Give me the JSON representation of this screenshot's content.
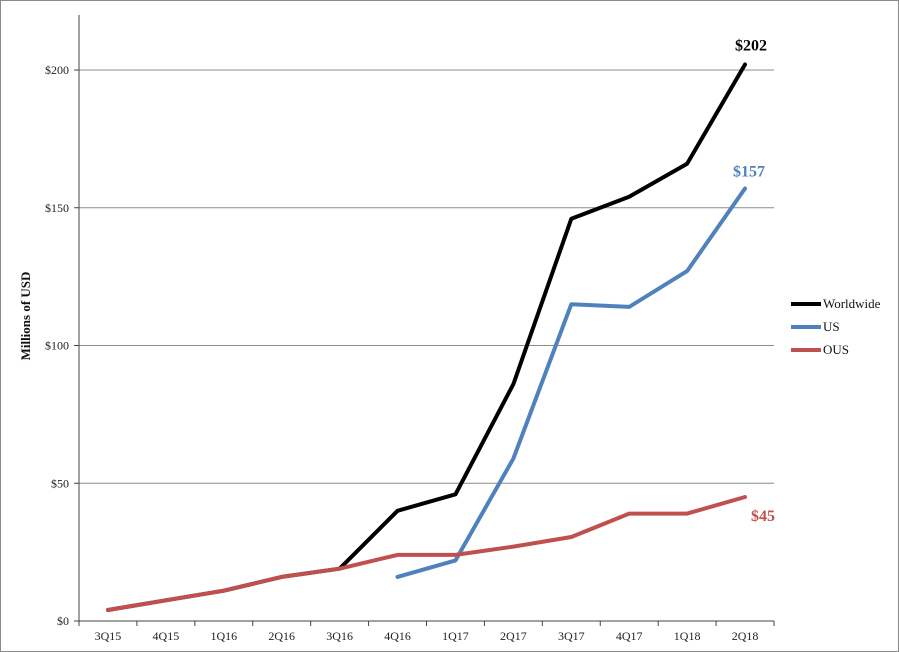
{
  "chart_data": {
    "type": "line",
    "title": "",
    "xlabel": "",
    "ylabel": "Millions of USD",
    "ylim": [
      0,
      200
    ],
    "yticks": [
      0,
      50,
      100,
      150,
      200
    ],
    "ytick_labels": [
      "$0",
      "$50",
      "$100",
      "$150",
      "$200"
    ],
    "grid": "horizontal",
    "legend_position": "right",
    "categories": [
      "3Q15",
      "4Q15",
      "1Q16",
      "2Q16",
      "3Q16",
      "4Q16",
      "1Q17",
      "2Q17",
      "3Q17",
      "4Q17",
      "1Q18",
      "2Q18"
    ],
    "series": [
      {
        "name": "Worldwide",
        "color": "#000000",
        "values": [
          4,
          7.5,
          11,
          16,
          19,
          40,
          46,
          86,
          146,
          154,
          166,
          202
        ],
        "end_label": "$202"
      },
      {
        "name": "US",
        "color": "#4f81bd",
        "values": [
          null,
          null,
          null,
          null,
          null,
          16,
          22,
          59,
          115,
          114,
          127,
          157
        ],
        "end_label": "$157"
      },
      {
        "name": "OUS",
        "color": "#c0504d",
        "values": [
          4,
          7.5,
          11,
          16,
          19,
          24,
          24,
          27,
          30.5,
          39,
          39,
          45
        ],
        "end_label": "$45"
      }
    ]
  }
}
